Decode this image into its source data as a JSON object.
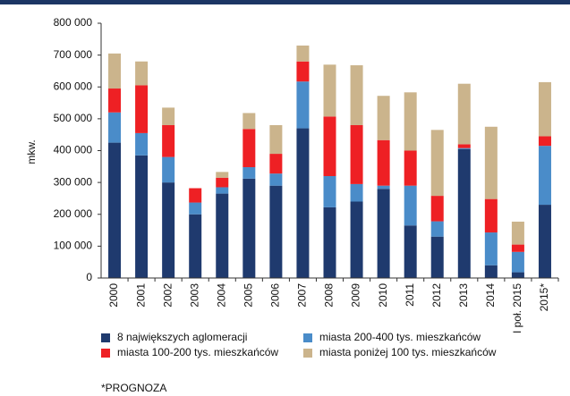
{
  "chart_data": {
    "type": "stacked_bar",
    "y_label": "mkw.",
    "categories": [
      "2000",
      "2001",
      "2002",
      "2003",
      "2004",
      "2005",
      "2006",
      "2007",
      "2008",
      "2009",
      "2010",
      "2011",
      "2012",
      "2013",
      "2014",
      "I poł. 2015",
      "2015*"
    ],
    "series": [
      {
        "name": "8 największych aglomeracji",
        "color": "#1f3a6e",
        "values": [
          425000,
          385000,
          300000,
          200000,
          265000,
          312000,
          290000,
          470000,
          222000,
          240000,
          280000,
          165000,
          130000,
          405000,
          40000,
          18000,
          230000
        ]
      },
      {
        "name": "miasta 200-400 tys. mieszkańców",
        "color": "#4a8cc9",
        "values": [
          95000,
          70000,
          80000,
          37000,
          20000,
          36000,
          38000,
          147000,
          98000,
          55000,
          10000,
          125000,
          48000,
          3000,
          103000,
          64000,
          185000
        ]
      },
      {
        "name": "miasta 100-200 tys. mieszkańców",
        "color": "#ee2024",
        "values": [
          75000,
          150000,
          100000,
          45000,
          30000,
          120000,
          62000,
          63000,
          187000,
          185000,
          143000,
          110000,
          80000,
          12000,
          105000,
          23000,
          30000
        ]
      },
      {
        "name": "miasta poniżej 100 tys. mieszkańców",
        "color": "#cbb48c",
        "values": [
          110000,
          75000,
          55000,
          0,
          18000,
          50000,
          90000,
          50000,
          163000,
          188000,
          139000,
          183000,
          207000,
          190000,
          227000,
          72000,
          170000
        ]
      }
    ],
    "ylim": [
      0,
      800000
    ],
    "yticks": [
      0,
      {
        "value": 100000,
        "label": "100 000"
      },
      {
        "value": 200000,
        "label": "200 000"
      },
      {
        "value": 300000,
        "label": "300 000"
      },
      {
        "value": 400000,
        "label": "400 000"
      },
      {
        "value": 500000,
        "label": "500 000"
      },
      {
        "value": 600000,
        "label": "600 000"
      },
      {
        "value": 700000,
        "label": "700 000"
      },
      {
        "value": 800000,
        "label": "800 000"
      }
    ],
    "grid": false,
    "footnote": "*PROGNOZA"
  }
}
